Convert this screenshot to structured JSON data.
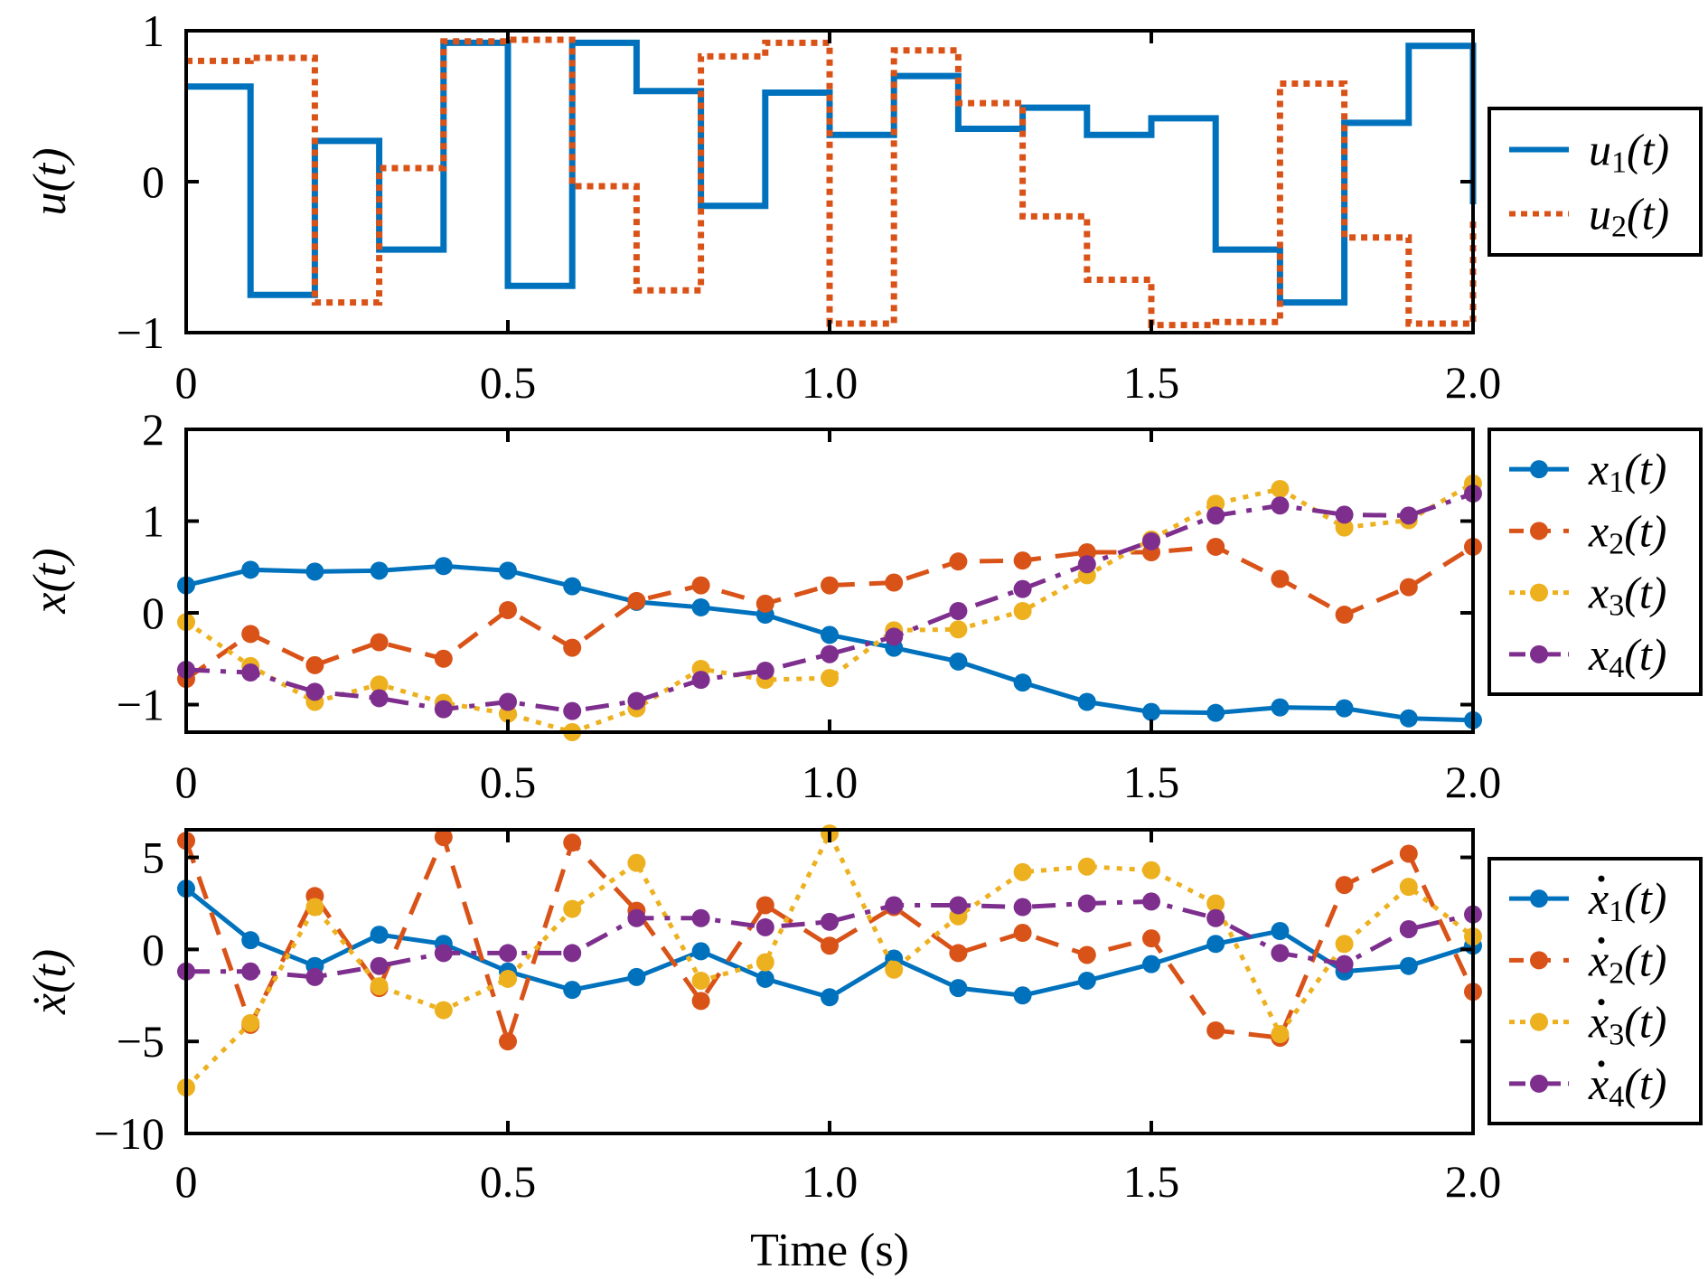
{
  "chart_data": [
    {
      "type": "line",
      "step": true,
      "title": "",
      "ylabel": "u(t)",
      "xlabel": "",
      "xlim": [
        0,
        2
      ],
      "ylim": [
        -1,
        1
      ],
      "xticks": [
        "0",
        "0.5",
        "1.0",
        "1.5",
        "2.0"
      ],
      "xtick_values": [
        0,
        0.5,
        1.0,
        1.5,
        2.0
      ],
      "yticks": [
        "−1",
        "0",
        "1"
      ],
      "ytick_values": [
        -1,
        0,
        1
      ],
      "legend_position": "right",
      "x": [
        0,
        0.1,
        0.2,
        0.3,
        0.4,
        0.5,
        0.6,
        0.7,
        0.8,
        0.9,
        1.0,
        1.1,
        1.2,
        1.3,
        1.4,
        1.5,
        1.6,
        1.7,
        1.8,
        1.9,
        2.0
      ],
      "series": [
        {
          "name": "u1(t)",
          "base": "u",
          "sub": "1",
          "dot": false,
          "color": "#0072BD",
          "style": "solid",
          "values": [
            0.63,
            -0.75,
            0.27,
            -0.45,
            0.92,
            -0.69,
            0.92,
            0.6,
            -0.16,
            0.59,
            0.31,
            0.7,
            0.35,
            0.49,
            0.31,
            0.42,
            -0.45,
            -0.8,
            0.39,
            0.9,
            -0.15
          ]
        },
        {
          "name": "u2(t)",
          "base": "u",
          "sub": "2",
          "dot": false,
          "color": "#D95319",
          "style": "dotted",
          "values": [
            0.8,
            0.82,
            -0.8,
            0.09,
            0.93,
            0.94,
            -0.03,
            -0.72,
            0.83,
            0.92,
            -0.94,
            0.87,
            0.52,
            -0.23,
            -0.65,
            -0.95,
            -0.93,
            0.65,
            -0.37,
            -0.94,
            -0.25
          ]
        }
      ]
    },
    {
      "type": "line",
      "title": "",
      "ylabel": "x(t)",
      "xlabel": "",
      "xlim": [
        0,
        2
      ],
      "ylim": [
        -1.3,
        2
      ],
      "xticks": [
        "0",
        "0.5",
        "1.0",
        "1.5",
        "2.0"
      ],
      "xtick_values": [
        0,
        0.5,
        1.0,
        1.5,
        2.0
      ],
      "yticks": [
        "−1",
        "0",
        "1",
        "2"
      ],
      "ytick_values": [
        -1,
        0,
        1,
        2
      ],
      "legend_position": "right",
      "x": [
        0,
        0.1,
        0.2,
        0.3,
        0.4,
        0.5,
        0.6,
        0.7,
        0.8,
        0.9,
        1.0,
        1.1,
        1.2,
        1.3,
        1.4,
        1.5,
        1.6,
        1.7,
        1.8,
        1.9,
        2.0
      ],
      "series": [
        {
          "name": "x1(t)",
          "base": "x",
          "sub": "1",
          "dot": false,
          "color": "#0072BD",
          "style": "solid",
          "values": [
            0.3,
            0.47,
            0.45,
            0.46,
            0.51,
            0.46,
            0.29,
            0.12,
            0.06,
            -0.02,
            -0.24,
            -0.38,
            -0.53,
            -0.76,
            -0.97,
            -1.08,
            -1.09,
            -1.03,
            -1.04,
            -1.15,
            -1.17
          ]
        },
        {
          "name": "x2(t)",
          "base": "x",
          "sub": "2",
          "dot": false,
          "color": "#D95319",
          "style": "dashed",
          "values": [
            -0.72,
            -0.23,
            -0.57,
            -0.32,
            -0.5,
            0.03,
            -0.38,
            0.13,
            0.3,
            0.1,
            0.3,
            0.33,
            0.56,
            0.57,
            0.66,
            0.66,
            0.72,
            0.37,
            -0.02,
            0.28,
            0.72
          ]
        },
        {
          "name": "x3(t)",
          "base": "x",
          "sub": "3",
          "dot": false,
          "color": "#EDB120",
          "style": "dotted",
          "values": [
            -0.1,
            -0.58,
            -0.97,
            -0.78,
            -0.98,
            -1.1,
            -1.3,
            -1.04,
            -0.61,
            -0.73,
            -0.71,
            -0.19,
            -0.18,
            0.02,
            0.41,
            0.8,
            1.19,
            1.35,
            0.93,
            1.01,
            1.41
          ]
        },
        {
          "name": "x4(t)",
          "base": "x",
          "sub": "4",
          "dot": false,
          "color": "#7E2F8E",
          "style": "dashdot",
          "values": [
            -0.62,
            -0.65,
            -0.86,
            -0.93,
            -1.05,
            -0.97,
            -1.07,
            -0.96,
            -0.73,
            -0.63,
            -0.45,
            -0.26,
            0.02,
            0.26,
            0.53,
            0.78,
            1.06,
            1.17,
            1.07,
            1.06,
            1.3
          ]
        }
      ]
    },
    {
      "type": "line",
      "title": "",
      "ylabel": "ẋ(t)",
      "xlabel": "Time (s)",
      "xlim": [
        0,
        2
      ],
      "ylim": [
        -10,
        6.5
      ],
      "xticks": [
        "0",
        "0.5",
        "1.0",
        "1.5",
        "2.0"
      ],
      "xtick_values": [
        0,
        0.5,
        1.0,
        1.5,
        2.0
      ],
      "yticks": [
        "−10",
        "−5",
        "0",
        "5"
      ],
      "ytick_values": [
        -10,
        -5,
        0,
        5
      ],
      "legend_position": "right",
      "x": [
        0,
        0.1,
        0.2,
        0.3,
        0.4,
        0.5,
        0.6,
        0.7,
        0.8,
        0.9,
        1.0,
        1.1,
        1.2,
        1.3,
        1.4,
        1.5,
        1.6,
        1.7,
        1.8,
        1.9,
        2.0
      ],
      "series": [
        {
          "name": "ẋ1(t)",
          "base": "x",
          "sub": "1",
          "dot": true,
          "color": "#0072BD",
          "style": "solid",
          "values": [
            3.3,
            0.5,
            -0.9,
            0.8,
            0.3,
            -1.2,
            -2.2,
            -1.5,
            -0.1,
            -1.6,
            -2.6,
            -0.5,
            -2.1,
            -2.5,
            -1.7,
            -0.8,
            0.3,
            1.0,
            -1.2,
            -0.9,
            0.2
          ]
        },
        {
          "name": "ẋ2(t)",
          "base": "x",
          "sub": "2",
          "dot": true,
          "color": "#D95319",
          "style": "dashed",
          "values": [
            5.9,
            -4.1,
            2.9,
            -2.1,
            6.1,
            -5.0,
            5.8,
            2.1,
            -2.8,
            2.4,
            0.2,
            2.3,
            -0.2,
            0.9,
            -0.3,
            0.6,
            -4.4,
            -4.8,
            3.5,
            5.2,
            -2.3
          ]
        },
        {
          "name": "ẋ3(t)",
          "base": "x",
          "sub": "3",
          "dot": true,
          "color": "#EDB120",
          "style": "dotted",
          "values": [
            -7.5,
            -4.0,
            2.3,
            -2.0,
            -3.3,
            -1.6,
            2.2,
            4.7,
            -1.7,
            -0.7,
            6.3,
            -1.1,
            1.8,
            4.2,
            4.5,
            4.3,
            2.5,
            -4.6,
            0.3,
            3.4,
            0.7
          ]
        },
        {
          "name": "ẋ4(t)",
          "base": "x",
          "sub": "4",
          "dot": true,
          "color": "#7E2F8E",
          "style": "dashdot",
          "values": [
            -1.2,
            -1.2,
            -1.5,
            -0.9,
            -0.2,
            -0.2,
            -0.2,
            1.7,
            1.7,
            1.2,
            1.5,
            2.4,
            2.4,
            2.3,
            2.5,
            2.6,
            1.7,
            -0.2,
            -0.8,
            1.1,
            1.9
          ]
        }
      ]
    }
  ]
}
